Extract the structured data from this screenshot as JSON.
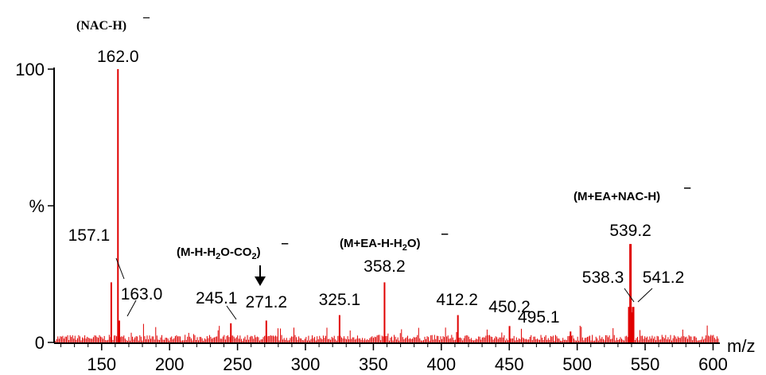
{
  "chart_data": {
    "type": "bar",
    "xlabel": "m/z",
    "ylabel": "%",
    "xlim": [
      115,
      605
    ],
    "ylim": [
      0,
      100
    ],
    "x_ticks": [
      150,
      200,
      250,
      300,
      350,
      400,
      450,
      500,
      550,
      600
    ],
    "y_ticks": [
      {
        "value": 0,
        "label": "0"
      },
      {
        "value": 50,
        "label": "%"
      },
      {
        "value": 100,
        "label": "100"
      }
    ],
    "color": "#e00000",
    "peaks": [
      {
        "mz": 157.1,
        "intensity": 22,
        "label": "157.1"
      },
      {
        "mz": 162.0,
        "intensity": 100,
        "label": "162.0"
      },
      {
        "mz": 163.0,
        "intensity": 8,
        "label": "163.0"
      },
      {
        "mz": 245.1,
        "intensity": 7,
        "label": "245.1"
      },
      {
        "mz": 271.2,
        "intensity": 8,
        "label": "271.2"
      },
      {
        "mz": 325.1,
        "intensity": 10,
        "label": "325.1"
      },
      {
        "mz": 358.2,
        "intensity": 22,
        "label": "358.2"
      },
      {
        "mz": 412.2,
        "intensity": 10,
        "label": "412.2"
      },
      {
        "mz": 450.2,
        "intensity": 6,
        "label": "450.2"
      },
      {
        "mz": 495.1,
        "intensity": 4,
        "label": "495.1"
      },
      {
        "mz": 538.3,
        "intensity": 13,
        "label": "538.3"
      },
      {
        "mz": 539.2,
        "intensity": 36,
        "label": "539.2"
      },
      {
        "mz": 541.2,
        "intensity": 13,
        "label": "541.2"
      }
    ],
    "annotations": {
      "nac": "(NAC-H)",
      "m_h2o_co2": {
        "a": "(M-H-H",
        "b": "O-CO",
        "c": ")"
      },
      "m_ea_h2o": {
        "a": "(M+EA-H-H",
        "b": "O)"
      },
      "m_ea_nac": "(M+EA+NAC-H)",
      "sub2": "2",
      "charge": "‒"
    }
  }
}
